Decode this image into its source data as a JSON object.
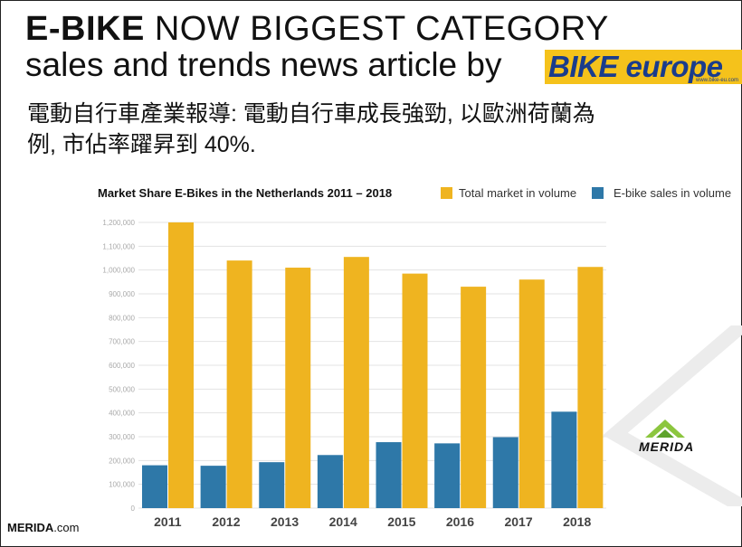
{
  "header": {
    "title_bold": "E-BIKE",
    "title_rest": "NOW BIGGEST CATEGORY",
    "subtitle": "sales and trends news article by",
    "brand": "BIKE europe",
    "brand_small": "www.bike-eu.com"
  },
  "description": {
    "line1": "電動自行車產業報導: 電動自行車成長強勁, 以歐洲荷蘭為",
    "line2": "例, 市佔率躍昇到 40%."
  },
  "footer": {
    "brand_bold": "MERIDA",
    "brand_rest": ".com"
  },
  "logo": {
    "text": "MERIDA"
  },
  "colors": {
    "total": "#efb420",
    "ebike": "#2e78a8",
    "grid": "#e3e3e3",
    "axis_text": "#aaaaaa"
  },
  "chart_data": {
    "type": "bar",
    "title": "Market Share E-Bikes in the Netherlands 2011 – 2018",
    "categories": [
      "2011",
      "2012",
      "2013",
      "2014",
      "2015",
      "2016",
      "2017",
      "2018"
    ],
    "series": [
      {
        "name": "Total market in volume",
        "values": [
          1200000,
          1040000,
          1010000,
          1055000,
          985000,
          930000,
          960000,
          1013000
        ]
      },
      {
        "name": "E-bike sales in volume",
        "values": [
          180000,
          178000,
          193000,
          223000,
          277000,
          272000,
          298000,
          405000
        ]
      }
    ],
    "yticks": [
      "0",
      "100,000",
      "200,000",
      "300,000",
      "400,000",
      "500,000",
      "600,000",
      "700,000",
      "800,000",
      "900,000",
      "1,000,000",
      "1,100,000",
      "1,200,000"
    ],
    "ylim": [
      0,
      1200000
    ],
    "grid": true,
    "legend": "top-right"
  }
}
